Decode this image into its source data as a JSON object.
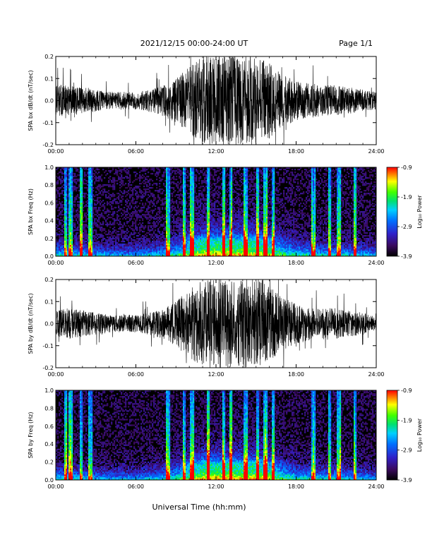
{
  "header": {
    "title": "2021/12/15  00:00-24:00 UT",
    "page": "Page 1/1"
  },
  "chart_data": [
    {
      "type": "line",
      "panel": "bx-waveform",
      "title": "",
      "xlabel": "",
      "ylabel": "SPA bx dB/dt (nT/sec)",
      "x_ticks": [
        "00:00",
        "06:00",
        "12:00",
        "18:00",
        "24:00"
      ],
      "y_ticks": [
        "-0.2",
        "-0.1",
        "0.0",
        "0.1",
        "0.2"
      ],
      "xlim": [
        0,
        24
      ],
      "ylim": [
        -0.2,
        0.2
      ],
      "series_color": "#000000",
      "envelope": {
        "hours": [
          0,
          1,
          2,
          3,
          4,
          5,
          6,
          7,
          8,
          9,
          10,
          11,
          12,
          13,
          14,
          15,
          16,
          17,
          18,
          19,
          20,
          21,
          22,
          23,
          24
        ],
        "typical_amplitude": [
          0.07,
          0.07,
          0.06,
          0.05,
          0.04,
          0.04,
          0.04,
          0.05,
          0.07,
          0.1,
          0.16,
          0.2,
          0.2,
          0.2,
          0.2,
          0.2,
          0.17,
          0.12,
          0.09,
          0.08,
          0.07,
          0.07,
          0.06,
          0.05,
          0.04
        ]
      }
    },
    {
      "type": "heatmap",
      "panel": "bx-spectrogram",
      "title": "",
      "xlabel": "",
      "ylabel": "SPA bx Freq (Hz)",
      "x_ticks": [
        "00:00",
        "06:00",
        "12:00",
        "18:00",
        "24:00"
      ],
      "y_ticks": [
        "0.0",
        "0.2",
        "0.4",
        "0.6",
        "0.8",
        "1.0"
      ],
      "xlim": [
        0,
        24
      ],
      "ylim": [
        0,
        1.0
      ],
      "colorbar": {
        "label": "Log₁₀ Power",
        "tick_labels": [
          "-0.9",
          "-1.9",
          "-2.9",
          "-3.9"
        ],
        "range": [
          -3.9,
          -0.9
        ]
      }
    },
    {
      "type": "line",
      "panel": "by-waveform",
      "title": "",
      "xlabel": "",
      "ylabel": "SPA by dB/dt (nT/sec)",
      "x_ticks": [
        "00:00",
        "06:00",
        "12:00",
        "18:00",
        "24:00"
      ],
      "y_ticks": [
        "-0.2",
        "-0.1",
        "0.0",
        "0.1",
        "0.2"
      ],
      "xlim": [
        0,
        24
      ],
      "ylim": [
        -0.2,
        0.2
      ],
      "series_color": "#000000",
      "envelope": {
        "hours": [
          0,
          1,
          2,
          3,
          4,
          5,
          6,
          7,
          8,
          9,
          10,
          11,
          12,
          13,
          14,
          15,
          16,
          17,
          18,
          19,
          20,
          21,
          22,
          23,
          24
        ],
        "typical_amplitude": [
          0.06,
          0.07,
          0.06,
          0.05,
          0.04,
          0.04,
          0.04,
          0.05,
          0.07,
          0.1,
          0.16,
          0.2,
          0.2,
          0.2,
          0.2,
          0.2,
          0.17,
          0.12,
          0.09,
          0.08,
          0.07,
          0.07,
          0.06,
          0.05,
          0.03
        ]
      }
    },
    {
      "type": "heatmap",
      "panel": "by-spectrogram",
      "title": "",
      "xlabel": "Universal Time (hh:mm)",
      "ylabel": "SPA by Freq (Hz)",
      "x_ticks": [
        "00:00",
        "06:00",
        "12:00",
        "18:00",
        "24:00"
      ],
      "y_ticks": [
        "0.0",
        "0.2",
        "0.4",
        "0.6",
        "0.8",
        "1.0"
      ],
      "xlim": [
        0,
        24
      ],
      "ylim": [
        0,
        1.0
      ],
      "colorbar": {
        "label": "Log₁₀ Power",
        "tick_labels": [
          "-0.9",
          "-1.9",
          "-2.9",
          "-3.9"
        ],
        "range": [
          -3.9,
          -0.9
        ]
      }
    }
  ]
}
